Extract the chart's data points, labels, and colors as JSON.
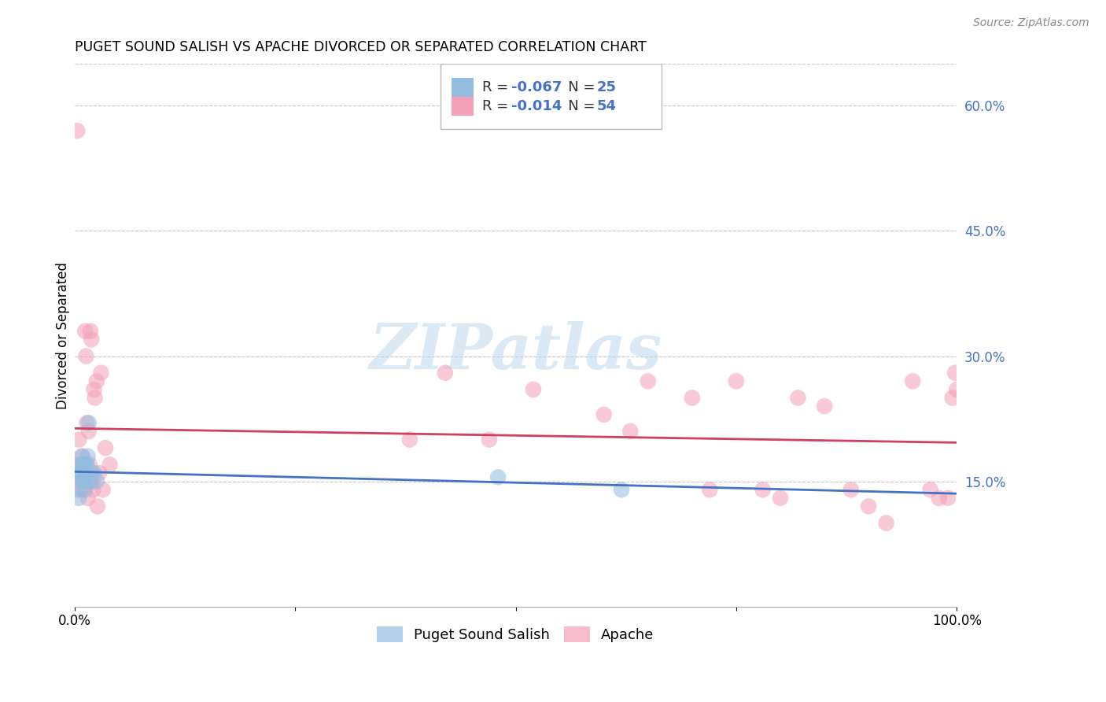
{
  "title": "PUGET SOUND SALISH VS APACHE DIVORCED OR SEPARATED CORRELATION CHART",
  "source": "Source: ZipAtlas.com",
  "ylabel": "Divorced or Separated",
  "xlim": [
    0,
    1
  ],
  "ylim": [
    0,
    0.65
  ],
  "x_tick_labels": [
    "0.0%",
    "",
    "",
    "",
    "100.0%"
  ],
  "x_tick_vals": [
    0,
    0.25,
    0.5,
    0.75,
    1.0
  ],
  "y_tick_labels_right": [
    "15.0%",
    "30.0%",
    "45.0%",
    "60.0%"
  ],
  "y_tick_vals_right": [
    0.15,
    0.3,
    0.45,
    0.6
  ],
  "watermark": "ZIPatlas",
  "blue_color": "#93bde0",
  "pink_color": "#f4a0b8",
  "blue_line_color": "#4472c4",
  "pink_line_color": "#d04060",
  "background": "#ffffff",
  "grid_color": "#c8c8c8",
  "puget_x": [
    0.003,
    0.005,
    0.006,
    0.007,
    0.008,
    0.008,
    0.009,
    0.009,
    0.01,
    0.01,
    0.011,
    0.011,
    0.012,
    0.012,
    0.013,
    0.013,
    0.014,
    0.015,
    0.016,
    0.018,
    0.02,
    0.022,
    0.025,
    0.48,
    0.62
  ],
  "puget_y": [
    0.14,
    0.13,
    0.17,
    0.16,
    0.15,
    0.18,
    0.16,
    0.17,
    0.15,
    0.17,
    0.15,
    0.16,
    0.16,
    0.14,
    0.17,
    0.16,
    0.17,
    0.18,
    0.22,
    0.15,
    0.16,
    0.16,
    0.15,
    0.155,
    0.14
  ],
  "apache_x": [
    0.003,
    0.004,
    0.005,
    0.006,
    0.007,
    0.008,
    0.009,
    0.01,
    0.01,
    0.011,
    0.012,
    0.013,
    0.014,
    0.015,
    0.016,
    0.016,
    0.017,
    0.018,
    0.019,
    0.02,
    0.021,
    0.022,
    0.023,
    0.025,
    0.026,
    0.028,
    0.03,
    0.032,
    0.035,
    0.04,
    0.38,
    0.42,
    0.47,
    0.52,
    0.6,
    0.63,
    0.65,
    0.7,
    0.72,
    0.75,
    0.78,
    0.8,
    0.82,
    0.85,
    0.88,
    0.9,
    0.92,
    0.95,
    0.97,
    0.98,
    0.99,
    0.995,
    0.998,
    1.0
  ],
  "apache_y": [
    0.57,
    0.15,
    0.2,
    0.17,
    0.14,
    0.15,
    0.18,
    0.17,
    0.14,
    0.15,
    0.33,
    0.3,
    0.22,
    0.13,
    0.21,
    0.15,
    0.17,
    0.33,
    0.32,
    0.15,
    0.14,
    0.26,
    0.25,
    0.27,
    0.12,
    0.16,
    0.28,
    0.14,
    0.19,
    0.17,
    0.2,
    0.28,
    0.2,
    0.26,
    0.23,
    0.21,
    0.27,
    0.25,
    0.14,
    0.27,
    0.14,
    0.13,
    0.25,
    0.24,
    0.14,
    0.12,
    0.1,
    0.27,
    0.14,
    0.13,
    0.13,
    0.25,
    0.28,
    0.26
  ]
}
